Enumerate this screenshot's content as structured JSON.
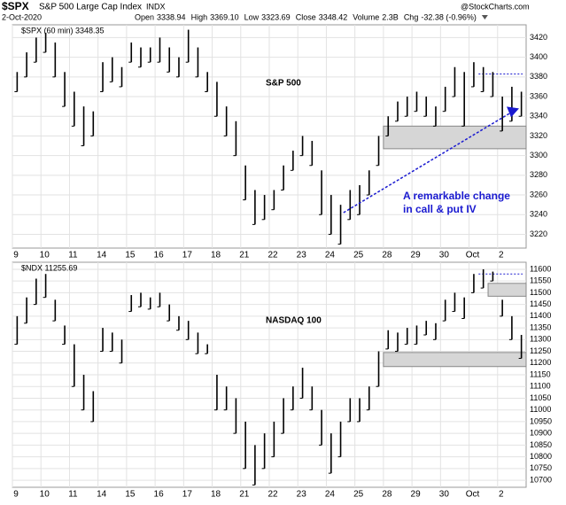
{
  "header": {
    "symbol": "$SPX",
    "name": "S&P 500 Large Cap Index",
    "exchange": "INDX",
    "date": "2-Oct-2020",
    "open_label": "Open",
    "open": "3338.94",
    "high_label": "High",
    "high": "3369.10",
    "low_label": "Low",
    "low": "3323.69",
    "close_label": "Close",
    "close": "3348.42",
    "volume_label": "Volume",
    "volume": "2.3B",
    "chg_label": "Chg",
    "chg": "-32.38 (-0.96%)",
    "brand": "@StockCharts.com"
  },
  "chart_data": [
    {
      "type": "ohlc",
      "legend": "$SPX (60 min) 3348.35",
      "title": "S&P 500",
      "annotation": "A remarkable change\nin call & put IV",
      "color": "#000000",
      "categories": [
        "9",
        null,
        null,
        "10",
        null,
        null,
        "11",
        null,
        null,
        "14",
        null,
        null,
        "15",
        null,
        null,
        "16",
        null,
        null,
        "17",
        null,
        null,
        "18",
        null,
        null,
        "21",
        null,
        null,
        "22",
        null,
        null,
        "23",
        null,
        null,
        "24",
        null,
        null,
        "25",
        null,
        null,
        "28",
        null,
        null,
        "29",
        null,
        null,
        "30",
        null,
        null,
        "Oct",
        null,
        null,
        "2",
        null,
        null
      ],
      "high": [
        3385,
        3405,
        3420,
        3425,
        3415,
        3385,
        3365,
        3350,
        3345,
        3395,
        3400,
        3390,
        3415,
        3410,
        3410,
        3420,
        3410,
        3400,
        3428,
        3410,
        3385,
        3375,
        3350,
        3335,
        3290,
        3265,
        3260,
        3265,
        3290,
        3305,
        3320,
        3315,
        3285,
        3260,
        3250,
        3265,
        3270,
        3285,
        3320,
        3340,
        3355,
        3360,
        3365,
        3360,
        3350,
        3370,
        3390,
        3385,
        3395,
        3390,
        3385,
        3360,
        3370,
        3365
      ],
      "low": [
        3365,
        3380,
        3395,
        3405,
        3380,
        3350,
        3330,
        3310,
        3320,
        3365,
        3375,
        3370,
        3395,
        3390,
        3395,
        3395,
        3385,
        3380,
        3395,
        3380,
        3365,
        3340,
        3320,
        3300,
        3255,
        3230,
        3235,
        3245,
        3265,
        3285,
        3300,
        3290,
        3240,
        3220,
        3210,
        3235,
        3240,
        3260,
        3290,
        3320,
        3335,
        3340,
        3345,
        3340,
        3330,
        3345,
        3360,
        3330,
        3370,
        3365,
        3360,
        3325,
        3335,
        3340
      ],
      "zone": [
        3307,
        3330
      ],
      "level": 3383,
      "arrow": [
        3242,
        3348
      ],
      "ylim": [
        3206,
        3433
      ],
      "yticks": [
        3220,
        3240,
        3260,
        3280,
        3300,
        3320,
        3340,
        3360,
        3380,
        3400,
        3420
      ],
      "grid": true
    },
    {
      "type": "ohlc",
      "legend": "$NDX 11255.69",
      "title": "NASDAQ 100",
      "color": "#000000",
      "categories": [
        "9",
        null,
        null,
        "10",
        null,
        null,
        "11",
        null,
        null,
        "14",
        null,
        null,
        "15",
        null,
        null,
        "16",
        null,
        null,
        "17",
        null,
        null,
        "18",
        null,
        null,
        "21",
        null,
        null,
        "22",
        null,
        null,
        "23",
        null,
        null,
        "24",
        null,
        null,
        "25",
        null,
        null,
        "28",
        null,
        null,
        "29",
        null,
        null,
        "30",
        null,
        null,
        "Oct",
        null,
        null,
        "2",
        null,
        null
      ],
      "high": [
        11400,
        11480,
        11560,
        11580,
        11470,
        11360,
        11280,
        11150,
        11080,
        11350,
        11330,
        11300,
        11490,
        11500,
        11480,
        11500,
        11450,
        11400,
        11380,
        11330,
        11280,
        11150,
        11100,
        11050,
        10950,
        10850,
        10900,
        10950,
        11050,
        11100,
        11180,
        11100,
        11000,
        10900,
        10950,
        11050,
        11050,
        11100,
        11250,
        11340,
        11330,
        11350,
        11360,
        11380,
        11370,
        11470,
        11500,
        11480,
        11580,
        11600,
        11590,
        11470,
        11400,
        11320
      ],
      "low": [
        11280,
        11370,
        11450,
        11480,
        11380,
        11280,
        11100,
        11000,
        10950,
        11250,
        11250,
        11200,
        11420,
        11440,
        11430,
        11440,
        11380,
        11340,
        11300,
        11240,
        11240,
        11000,
        11000,
        10900,
        10750,
        10680,
        10750,
        10800,
        10900,
        11000,
        11050,
        11000,
        10850,
        10730,
        10800,
        10950,
        10950,
        11000,
        11100,
        11260,
        11250,
        11280,
        11280,
        11320,
        11300,
        11380,
        11420,
        11390,
        11500,
        11520,
        11550,
        11400,
        11300,
        11220
      ],
      "zone": [
        11185,
        11245
      ],
      "zone2": [
        11485,
        11540
      ],
      "level": 11580,
      "ylim": [
        10670,
        11630
      ],
      "yticks": [
        10700,
        10750,
        10800,
        10850,
        10900,
        10950,
        11000,
        11050,
        11100,
        11150,
        11200,
        11250,
        11300,
        11350,
        11400,
        11450,
        11500,
        11550,
        11600
      ],
      "grid": true
    }
  ]
}
